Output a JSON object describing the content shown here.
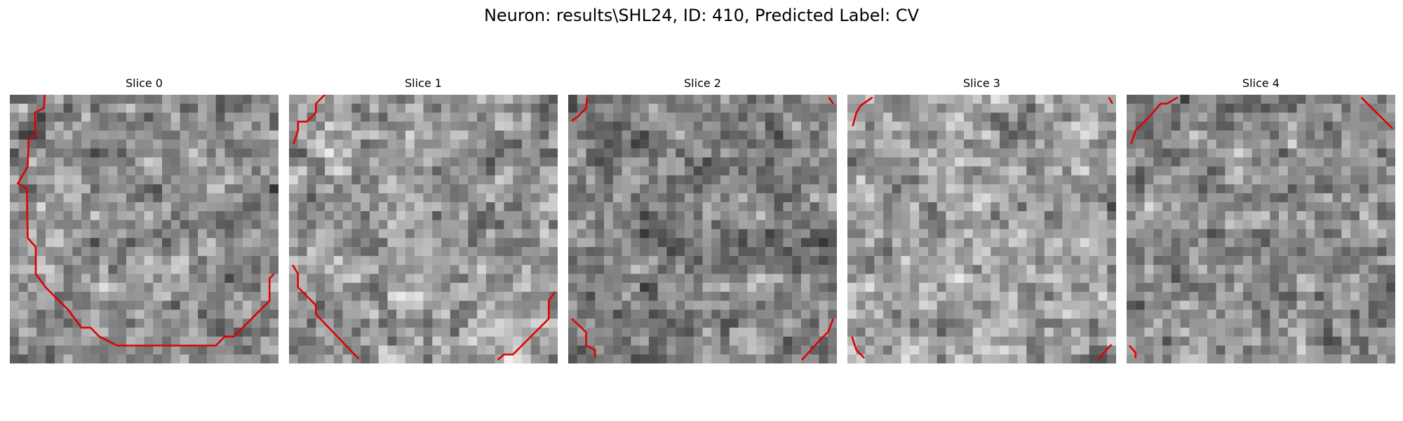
{
  "figure": {
    "title": "Neuron: results\\SHL24, ID: 410, Predicted Label: CV"
  },
  "colors": {
    "background": "#ffffff",
    "contour": "#e00000",
    "image_colormap": "grayscale"
  },
  "slices": [
    {
      "title": "Slice 0",
      "brightness_center": 0.55,
      "contrast": 0.3,
      "seed": 11
    },
    {
      "title": "Slice 1",
      "brightness_center": 0.6,
      "contrast": 0.32,
      "seed": 23
    },
    {
      "title": "Slice 2",
      "brightness_center": 0.5,
      "contrast": 0.3,
      "seed": 37
    },
    {
      "title": "Slice 3",
      "brightness_center": 0.62,
      "contrast": 0.3,
      "seed": 41
    },
    {
      "title": "Slice 4",
      "brightness_center": 0.55,
      "contrast": 0.3,
      "seed": 53
    }
  ]
}
